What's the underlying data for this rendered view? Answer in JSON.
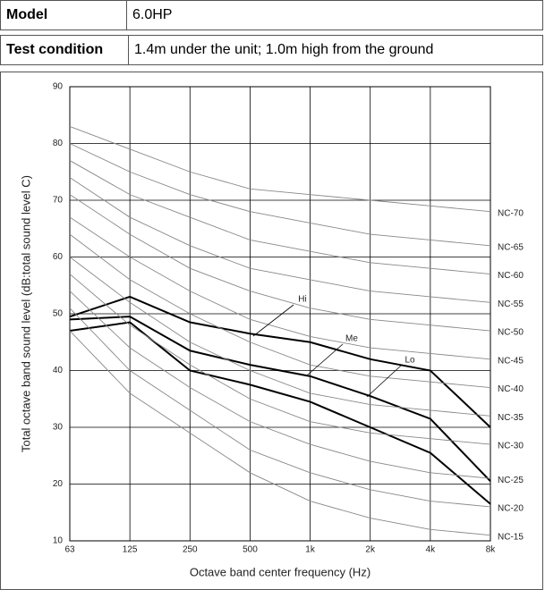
{
  "table": {
    "rows": [
      [
        "Model",
        "6.0HP"
      ],
      [
        "Test condition",
        "1.4m under the unit; 1.0m high from the ground"
      ]
    ]
  },
  "chart_data": {
    "type": "line",
    "x_label": "Octave band center frequency (Hz)",
    "y_label": "Total octave band sound level (dB:total sound level C)",
    "categories": [
      "63",
      "125",
      "250",
      "500",
      "1k",
      "2k",
      "4k",
      "8k"
    ],
    "ylim": [
      10,
      90
    ],
    "yticks": [
      10,
      20,
      30,
      40,
      50,
      60,
      70,
      80,
      90
    ],
    "grid": true,
    "series": [
      {
        "name": "Hi",
        "color": "#000000",
        "values": [
          49.5,
          53,
          48.5,
          46.5,
          45,
          42,
          40,
          30
        ]
      },
      {
        "name": "Me",
        "color": "#000000",
        "values": [
          49,
          49.5,
          43.5,
          41,
          39,
          35.5,
          31.5,
          20.5
        ]
      },
      {
        "name": "Lo",
        "color": "#000000",
        "values": [
          47,
          48.5,
          40,
          37.5,
          34.5,
          30,
          25.5,
          16.5
        ]
      },
      {
        "name": "NC-15",
        "color": "#888888",
        "values": [
          47,
          36,
          29,
          22,
          17,
          14,
          12,
          11
        ]
      },
      {
        "name": "NC-20",
        "color": "#888888",
        "values": [
          51,
          40,
          33,
          26,
          22,
          19,
          17,
          16
        ]
      },
      {
        "name": "NC-25",
        "color": "#888888",
        "values": [
          54,
          44,
          37,
          31,
          27,
          24,
          22,
          21
        ]
      },
      {
        "name": "NC-30",
        "color": "#888888",
        "values": [
          57,
          48,
          41,
          35,
          31,
          29,
          28,
          27
        ]
      },
      {
        "name": "NC-35",
        "color": "#888888",
        "values": [
          60,
          52,
          45,
          40,
          36,
          34,
          33,
          32
        ]
      },
      {
        "name": "NC-40",
        "color": "#888888",
        "values": [
          64,
          56,
          50,
          45,
          41,
          39,
          38,
          37
        ]
      },
      {
        "name": "NC-45",
        "color": "#888888",
        "values": [
          67,
          60,
          54,
          49,
          46,
          44,
          43,
          42
        ]
      },
      {
        "name": "NC-50",
        "color": "#888888",
        "values": [
          71,
          64,
          58,
          54,
          51,
          49,
          48,
          47
        ]
      },
      {
        "name": "NC-55",
        "color": "#888888",
        "values": [
          74,
          67,
          62,
          58,
          56,
          54,
          53,
          52
        ]
      },
      {
        "name": "NC-60",
        "color": "#888888",
        "values": [
          77,
          71,
          67,
          63,
          61,
          59,
          58,
          57
        ]
      },
      {
        "name": "NC-65",
        "color": "#888888",
        "values": [
          80,
          75,
          71,
          68,
          66,
          64,
          63,
          62
        ]
      },
      {
        "name": "NC-70",
        "color": "#888888",
        "values": [
          83,
          79,
          75,
          72,
          71,
          70,
          69,
          68
        ]
      }
    ]
  }
}
